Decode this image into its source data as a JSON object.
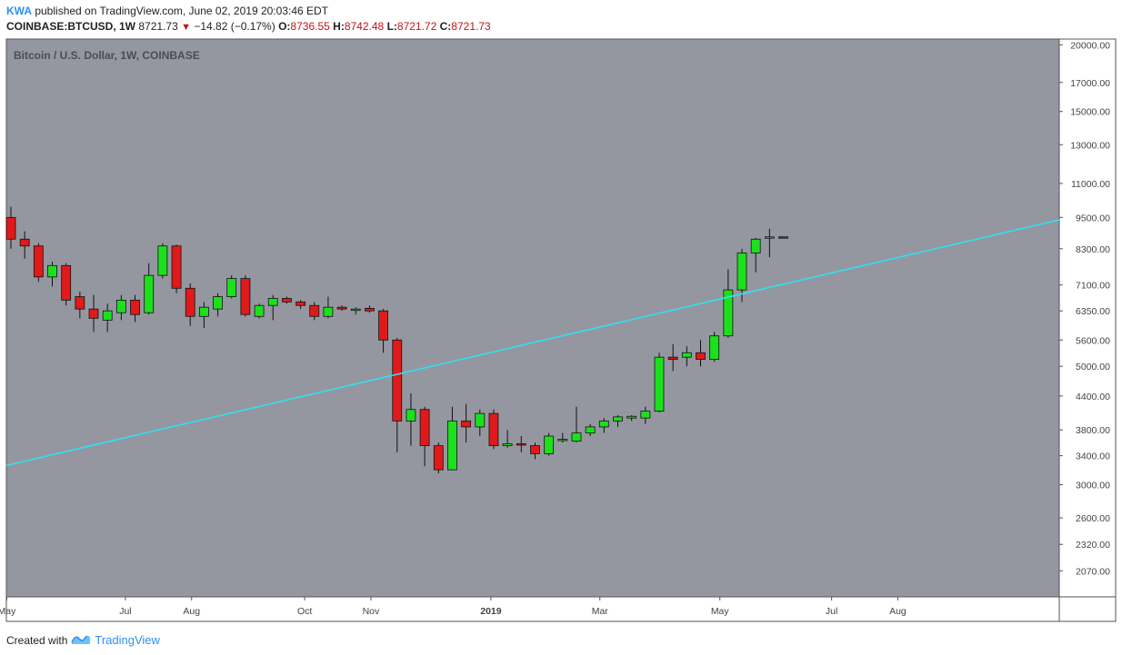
{
  "header": {
    "user": "KWA",
    "published_text": " published on TradingView.com, June 02, 2019 20:03:46 EDT",
    "symbol": "COINBASE:BTCUSD, 1W",
    "last": "8721.73",
    "change": "−14.82 (−0.17%)",
    "o_label": "O:",
    "o_value": "8736.55",
    "h_label": "H:",
    "h_value": "8742.48",
    "l_label": "L:",
    "l_value": "8721.72",
    "c_label": "C:",
    "c_value": "8721.73"
  },
  "footer": {
    "created_with": "Created with",
    "brand": "TradingView"
  },
  "colors": {
    "plot_bg": "#9497a0",
    "up": "#1de01d",
    "down": "#e01a1a",
    "trendline": "#33e0f0",
    "text_red": "#c01616",
    "brand_blue": "#2e8ff0"
  },
  "chart_data": {
    "type": "candlestick",
    "title": "Bitcoin / U.S. Dollar, 1W, COINBASE",
    "y_scale": "log",
    "ylim": [
      1850,
      20500
    ],
    "y_ticks": [
      "20000.00",
      "17000.00",
      "15000.00",
      "13000.00",
      "11000.00",
      "9500.00",
      "8300.00",
      "7100.00",
      "6350.00",
      "5600.00",
      "5000.00",
      "4400.00",
      "3800.00",
      "3400.00",
      "3000.00",
      "2600.00",
      "2320.00",
      "2070.00"
    ],
    "x_labels": [
      {
        "label": "May",
        "week": -0.3
      },
      {
        "label": "Jul",
        "week": 8.3
      },
      {
        "label": "Aug",
        "week": 13.1
      },
      {
        "label": "Oct",
        "week": 21.3
      },
      {
        "label": "Nov",
        "week": 26.1
      },
      {
        "label": "2019",
        "week": 34.8
      },
      {
        "label": "Mar",
        "week": 42.7
      },
      {
        "label": "May",
        "week": 51.4
      },
      {
        "label": "Jul",
        "week": 59.5
      },
      {
        "label": "Aug",
        "week": 64.3
      }
    ],
    "candles": [
      {
        "o": 9500,
        "h": 9950,
        "l": 8300,
        "c": 8650
      },
      {
        "o": 8650,
        "h": 8950,
        "l": 7950,
        "c": 8400
      },
      {
        "o": 8400,
        "h": 8500,
        "l": 7200,
        "c": 7350
      },
      {
        "o": 7350,
        "h": 7850,
        "l": 7050,
        "c": 7720
      },
      {
        "o": 7720,
        "h": 7800,
        "l": 6500,
        "c": 6650
      },
      {
        "o": 6750,
        "h": 6900,
        "l": 6150,
        "c": 6400
      },
      {
        "o": 6400,
        "h": 6800,
        "l": 5800,
        "c": 6150
      },
      {
        "o": 6100,
        "h": 6550,
        "l": 5800,
        "c": 6350
      },
      {
        "o": 6300,
        "h": 6800,
        "l": 6100,
        "c": 6650
      },
      {
        "o": 6650,
        "h": 6800,
        "l": 6050,
        "c": 6250
      },
      {
        "o": 6300,
        "h": 7800,
        "l": 6250,
        "c": 7400
      },
      {
        "o": 7400,
        "h": 8500,
        "l": 7300,
        "c": 8400
      },
      {
        "o": 8400,
        "h": 8450,
        "l": 6850,
        "c": 7000
      },
      {
        "o": 7000,
        "h": 7150,
        "l": 5950,
        "c": 6200
      },
      {
        "o": 6200,
        "h": 6600,
        "l": 5900,
        "c": 6450
      },
      {
        "o": 6400,
        "h": 6850,
        "l": 6200,
        "c": 6750
      },
      {
        "o": 6750,
        "h": 7400,
        "l": 6700,
        "c": 7300
      },
      {
        "o": 7300,
        "h": 7400,
        "l": 6200,
        "c": 6250
      },
      {
        "o": 6200,
        "h": 6550,
        "l": 6150,
        "c": 6500
      },
      {
        "o": 6500,
        "h": 6800,
        "l": 6100,
        "c": 6700
      },
      {
        "o": 6700,
        "h": 6750,
        "l": 6550,
        "c": 6600
      },
      {
        "o": 6600,
        "h": 6650,
        "l": 6400,
        "c": 6500
      },
      {
        "o": 6500,
        "h": 6600,
        "l": 6100,
        "c": 6200
      },
      {
        "o": 6200,
        "h": 6750,
        "l": 6150,
        "c": 6450
      },
      {
        "o": 6450,
        "h": 6500,
        "l": 6350,
        "c": 6400
      },
      {
        "o": 6400,
        "h": 6450,
        "l": 6250,
        "c": 6400
      },
      {
        "o": 6420,
        "h": 6500,
        "l": 6300,
        "c": 6350
      },
      {
        "o": 6350,
        "h": 6400,
        "l": 5300,
        "c": 5600
      },
      {
        "o": 5600,
        "h": 5650,
        "l": 3450,
        "c": 3950
      },
      {
        "o": 3950,
        "h": 4450,
        "l": 3550,
        "c": 4150
      },
      {
        "o": 4150,
        "h": 4200,
        "l": 3250,
        "c": 3550
      },
      {
        "o": 3550,
        "h": 3600,
        "l": 3150,
        "c": 3200
      },
      {
        "o": 3200,
        "h": 4200,
        "l": 3200,
        "c": 3950
      },
      {
        "o": 3950,
        "h": 4250,
        "l": 3600,
        "c": 3850
      },
      {
        "o": 3850,
        "h": 4150,
        "l": 3700,
        "c": 4080
      },
      {
        "o": 4080,
        "h": 4150,
        "l": 3500,
        "c": 3550
      },
      {
        "o": 3550,
        "h": 3800,
        "l": 3520,
        "c": 3580
      },
      {
        "o": 3580,
        "h": 3700,
        "l": 3450,
        "c": 3560
      },
      {
        "o": 3550,
        "h": 3600,
        "l": 3350,
        "c": 3430
      },
      {
        "o": 3430,
        "h": 3750,
        "l": 3400,
        "c": 3700
      },
      {
        "o": 3650,
        "h": 3750,
        "l": 3600,
        "c": 3650
      },
      {
        "o": 3620,
        "h": 4200,
        "l": 3600,
        "c": 3750
      },
      {
        "o": 3750,
        "h": 3900,
        "l": 3700,
        "c": 3850
      },
      {
        "o": 3850,
        "h": 4000,
        "l": 3750,
        "c": 3950
      },
      {
        "o": 3950,
        "h": 4050,
        "l": 3850,
        "c": 4020
      },
      {
        "o": 4000,
        "h": 4050,
        "l": 3950,
        "c": 4030
      },
      {
        "o": 4000,
        "h": 4200,
        "l": 3900,
        "c": 4120
      },
      {
        "o": 4120,
        "h": 5300,
        "l": 4100,
        "c": 5200
      },
      {
        "o": 5200,
        "h": 5500,
        "l": 4900,
        "c": 5150
      },
      {
        "o": 5200,
        "h": 5450,
        "l": 5000,
        "c": 5300
      },
      {
        "o": 5300,
        "h": 5600,
        "l": 5000,
        "c": 5150
      },
      {
        "o": 5150,
        "h": 5800,
        "l": 5100,
        "c": 5700
      },
      {
        "o": 5700,
        "h": 7600,
        "l": 5650,
        "c": 6950
      },
      {
        "o": 6950,
        "h": 8300,
        "l": 6600,
        "c": 8150
      },
      {
        "o": 8150,
        "h": 8700,
        "l": 7500,
        "c": 8650
      },
      {
        "o": 8700,
        "h": 9050,
        "l": 8000,
        "c": 8736
      },
      {
        "o": 8736.55,
        "h": 8742.48,
        "l": 8721.72,
        "c": 8721.73
      }
    ],
    "trendline": {
      "start": {
        "week": -0.3,
        "price": 3260
      },
      "end": {
        "week": 80.5,
        "price": 9400
      }
    }
  }
}
